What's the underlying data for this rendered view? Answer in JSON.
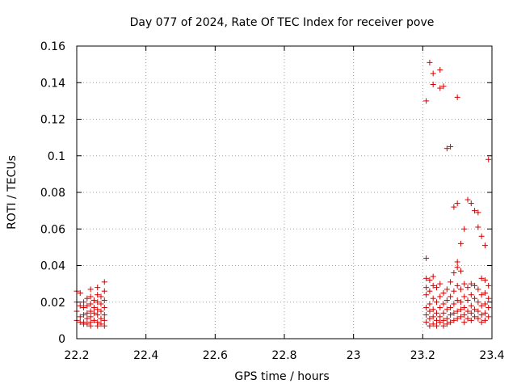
{
  "chart_data": {
    "type": "scatter",
    "title": "Day 077 of 2024, Rate Of TEC Index for receiver pove",
    "xlabel": "GPS time / hours",
    "ylabel": "ROTI / TECUs",
    "xlim": [
      22.2,
      23.4
    ],
    "ylim": [
      0,
      0.16
    ],
    "xticks": [
      "22.2",
      "22.4",
      "22.6",
      "22.8",
      "23",
      "23.2",
      "23.4"
    ],
    "yticks": [
      "0",
      "0.02",
      "0.04",
      "0.06",
      "0.08",
      "0.1",
      "0.12",
      "0.14",
      "0.16"
    ],
    "grid": true,
    "marker": "+",
    "color": "#d40000",
    "series": [
      {
        "name": "ROTI",
        "points": [
          [
            22.2,
            0.026
          ],
          [
            22.21,
            0.025
          ],
          [
            22.2,
            0.02
          ],
          [
            22.21,
            0.018
          ],
          [
            22.2,
            0.015
          ],
          [
            22.21,
            0.012
          ],
          [
            22.2,
            0.01
          ],
          [
            22.21,
            0.009
          ],
          [
            22.22,
            0.02
          ],
          [
            22.22,
            0.017
          ],
          [
            22.22,
            0.013
          ],
          [
            22.22,
            0.009
          ],
          [
            22.22,
            0.008
          ],
          [
            22.23,
            0.022
          ],
          [
            22.23,
            0.018
          ],
          [
            22.23,
            0.014
          ],
          [
            22.23,
            0.011
          ],
          [
            22.23,
            0.008
          ],
          [
            22.24,
            0.027
          ],
          [
            22.24,
            0.023
          ],
          [
            22.24,
            0.019
          ],
          [
            22.24,
            0.015
          ],
          [
            22.24,
            0.012
          ],
          [
            22.24,
            0.009
          ],
          [
            22.24,
            0.007
          ],
          [
            22.25,
            0.021
          ],
          [
            22.25,
            0.017
          ],
          [
            22.25,
            0.014
          ],
          [
            22.25,
            0.01
          ],
          [
            22.26,
            0.028
          ],
          [
            22.26,
            0.024
          ],
          [
            22.26,
            0.02
          ],
          [
            22.26,
            0.016
          ],
          [
            22.26,
            0.013
          ],
          [
            22.26,
            0.009
          ],
          [
            22.26,
            0.007
          ],
          [
            22.27,
            0.023
          ],
          [
            22.27,
            0.019
          ],
          [
            22.27,
            0.015
          ],
          [
            22.27,
            0.011
          ],
          [
            22.27,
            0.008
          ],
          [
            22.28,
            0.031
          ],
          [
            22.28,
            0.026
          ],
          [
            22.28,
            0.021
          ],
          [
            22.28,
            0.017
          ],
          [
            22.28,
            0.013
          ],
          [
            22.28,
            0.01
          ],
          [
            22.28,
            0.007
          ],
          [
            23.21,
            0.13
          ],
          [
            23.21,
            0.044
          ],
          [
            23.21,
            0.033
          ],
          [
            23.21,
            0.028
          ],
          [
            23.21,
            0.024
          ],
          [
            23.21,
            0.017
          ],
          [
            23.21,
            0.013
          ],
          [
            23.21,
            0.009
          ],
          [
            23.22,
            0.151
          ],
          [
            23.22,
            0.032
          ],
          [
            23.22,
            0.026
          ],
          [
            23.22,
            0.019
          ],
          [
            23.22,
            0.015
          ],
          [
            23.22,
            0.011
          ],
          [
            23.22,
            0.007
          ],
          [
            23.23,
            0.145
          ],
          [
            23.23,
            0.139
          ],
          [
            23.23,
            0.034
          ],
          [
            23.23,
            0.029
          ],
          [
            23.23,
            0.022
          ],
          [
            23.23,
            0.016
          ],
          [
            23.23,
            0.012
          ],
          [
            23.23,
            0.008
          ],
          [
            23.24,
            0.028
          ],
          [
            23.24,
            0.02
          ],
          [
            23.24,
            0.014
          ],
          [
            23.24,
            0.01
          ],
          [
            23.24,
            0.007
          ],
          [
            23.25,
            0.147
          ],
          [
            23.25,
            0.137
          ],
          [
            23.25,
            0.03
          ],
          [
            23.25,
            0.023
          ],
          [
            23.25,
            0.017
          ],
          [
            23.25,
            0.012
          ],
          [
            23.25,
            0.009
          ],
          [
            23.26,
            0.138
          ],
          [
            23.26,
            0.025
          ],
          [
            23.26,
            0.019
          ],
          [
            23.26,
            0.014
          ],
          [
            23.26,
            0.01
          ],
          [
            23.26,
            0.007
          ],
          [
            23.27,
            0.104
          ],
          [
            23.27,
            0.027
          ],
          [
            23.27,
            0.021
          ],
          [
            23.27,
            0.016
          ],
          [
            23.27,
            0.011
          ],
          [
            23.27,
            0.008
          ],
          [
            23.28,
            0.105
          ],
          [
            23.28,
            0.031
          ],
          [
            23.28,
            0.023
          ],
          [
            23.28,
            0.017
          ],
          [
            23.28,
            0.013
          ],
          [
            23.28,
            0.009
          ],
          [
            23.29,
            0.072
          ],
          [
            23.29,
            0.036
          ],
          [
            23.29,
            0.026
          ],
          [
            23.29,
            0.019
          ],
          [
            23.29,
            0.014
          ],
          [
            23.29,
            0.01
          ],
          [
            23.3,
            0.074
          ],
          [
            23.3,
            0.132
          ],
          [
            23.3,
            0.042
          ],
          [
            23.3,
            0.039
          ],
          [
            23.3,
            0.029
          ],
          [
            23.3,
            0.021
          ],
          [
            23.3,
            0.015
          ],
          [
            23.3,
            0.011
          ],
          [
            23.31,
            0.052
          ],
          [
            23.31,
            0.037
          ],
          [
            23.31,
            0.027
          ],
          [
            23.31,
            0.02
          ],
          [
            23.31,
            0.016
          ],
          [
            23.31,
            0.012
          ],
          [
            23.32,
            0.06
          ],
          [
            23.32,
            0.03
          ],
          [
            23.32,
            0.023
          ],
          [
            23.32,
            0.017
          ],
          [
            23.32,
            0.013
          ],
          [
            23.32,
            0.009
          ],
          [
            23.33,
            0.076
          ],
          [
            23.33,
            0.028
          ],
          [
            23.33,
            0.021
          ],
          [
            23.33,
            0.015
          ],
          [
            23.33,
            0.011
          ],
          [
            23.34,
            0.074
          ],
          [
            23.34,
            0.03
          ],
          [
            23.34,
            0.024
          ],
          [
            23.34,
            0.018
          ],
          [
            23.34,
            0.014
          ],
          [
            23.34,
            0.01
          ],
          [
            23.35,
            0.07
          ],
          [
            23.35,
            0.029
          ],
          [
            23.35,
            0.022
          ],
          [
            23.35,
            0.016
          ],
          [
            23.35,
            0.012
          ],
          [
            23.36,
            0.069
          ],
          [
            23.36,
            0.061
          ],
          [
            23.36,
            0.027
          ],
          [
            23.36,
            0.02
          ],
          [
            23.36,
            0.015
          ],
          [
            23.36,
            0.011
          ],
          [
            23.37,
            0.056
          ],
          [
            23.37,
            0.033
          ],
          [
            23.37,
            0.024
          ],
          [
            23.37,
            0.018
          ],
          [
            23.37,
            0.013
          ],
          [
            23.37,
            0.009
          ],
          [
            23.38,
            0.051
          ],
          [
            23.38,
            0.032
          ],
          [
            23.38,
            0.025
          ],
          [
            23.38,
            0.019
          ],
          [
            23.38,
            0.014
          ],
          [
            23.38,
            0.01
          ],
          [
            23.39,
            0.098
          ],
          [
            23.39,
            0.029
          ],
          [
            23.39,
            0.022
          ],
          [
            23.39,
            0.017
          ],
          [
            23.39,
            0.012
          ]
        ]
      }
    ]
  }
}
